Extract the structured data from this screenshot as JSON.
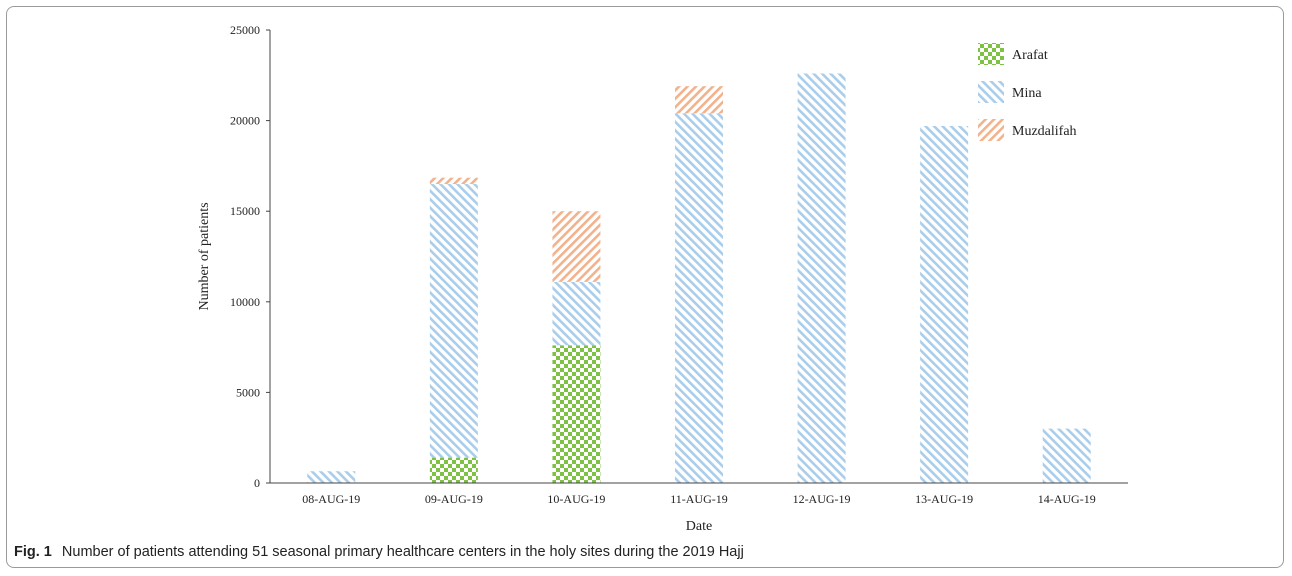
{
  "caption": {
    "label": "Fig. 1",
    "text": "Number of patients attending 51 seasonal primary healthcare centers in the holy sites during the 2019 Hajj"
  },
  "colors": {
    "Arafat": "#7dc242",
    "Mina": "#a9cdea",
    "Muzdalifah": "#f2b28c",
    "axis": "#444444"
  },
  "chart_data": {
    "type": "bar",
    "stacked": true,
    "xlabel": "Date",
    "ylabel": "Number of patients",
    "ylim": [
      0,
      25000
    ],
    "yticks": [
      0,
      5000,
      10000,
      15000,
      20000,
      25000
    ],
    "categories": [
      "08-AUG-19",
      "09-AUG-19",
      "10-AUG-19",
      "11-AUG-19",
      "12-AUG-19",
      "13-AUG-19",
      "14-AUG-19"
    ],
    "series": [
      {
        "name": "Arafat",
        "pattern": "checker",
        "values": [
          0,
          1400,
          7600,
          0,
          0,
          0,
          0
        ]
      },
      {
        "name": "Mina",
        "pattern": "diagonal-down",
        "values": [
          650,
          15100,
          3500,
          20400,
          22600,
          19700,
          3000
        ]
      },
      {
        "name": "Muzdalifah",
        "pattern": "diagonal-up",
        "values": [
          0,
          350,
          3900,
          1500,
          0,
          0,
          0
        ]
      }
    ],
    "legend_position": "top-right",
    "grid": false
  }
}
